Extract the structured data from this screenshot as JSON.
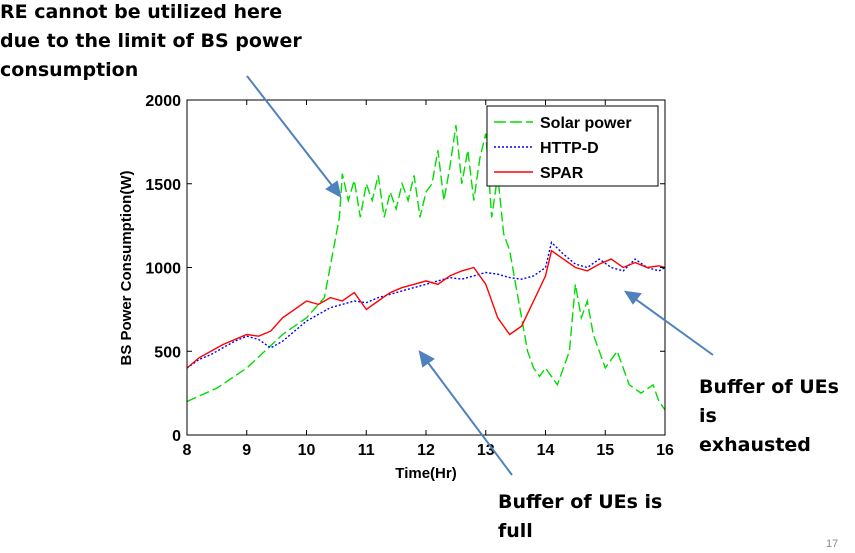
{
  "chart_data": {
    "type": "line",
    "title": "",
    "xlabel": "Time(Hr)",
    "ylabel": "BS Power Consumption(W)",
    "xlim": [
      8,
      16
    ],
    "ylim": [
      0,
      2000
    ],
    "x_ticks": [
      "8",
      "9",
      "10",
      "11",
      "12",
      "13",
      "14",
      "15",
      "16"
    ],
    "y_ticks": [
      "0",
      "500",
      "1000",
      "1500",
      "2000"
    ],
    "grid": false,
    "legend_position": "top-right",
    "series": [
      {
        "name": "Solar power",
        "color": "#00dd00",
        "style": "dashed",
        "x": [
          8.0,
          8.5,
          9.0,
          9.3,
          9.6,
          10.0,
          10.3,
          10.55,
          10.6,
          10.7,
          10.8,
          10.9,
          11.0,
          11.1,
          11.2,
          11.3,
          11.4,
          11.5,
          11.6,
          11.7,
          11.8,
          11.9,
          12.0,
          12.1,
          12.2,
          12.3,
          12.4,
          12.5,
          12.6,
          12.7,
          12.8,
          12.9,
          13.0,
          13.1,
          13.2,
          13.3,
          13.4,
          13.5,
          13.6,
          13.7,
          13.8,
          13.9,
          14.0,
          14.2,
          14.4,
          14.5,
          14.6,
          14.7,
          14.8,
          14.9,
          15.0,
          15.2,
          15.4,
          15.6,
          15.8,
          15.9,
          16.0
        ],
        "y": [
          200,
          280,
          400,
          500,
          600,
          700,
          820,
          1300,
          1560,
          1400,
          1520,
          1300,
          1500,
          1400,
          1550,
          1300,
          1450,
          1350,
          1500,
          1400,
          1550,
          1300,
          1450,
          1500,
          1700,
          1400,
          1600,
          1850,
          1500,
          1700,
          1400,
          1650,
          1800,
          1300,
          1550,
          1200,
          1100,
          900,
          700,
          500,
          400,
          350,
          400,
          300,
          500,
          900,
          700,
          800,
          600,
          500,
          400,
          500,
          300,
          250,
          300,
          200,
          150
        ]
      },
      {
        "name": "HTTP-D",
        "color": "#0000ff",
        "style": "dotted",
        "x": [
          8.0,
          8.2,
          8.4,
          8.6,
          8.8,
          9.0,
          9.2,
          9.4,
          9.6,
          9.8,
          10.0,
          10.2,
          10.4,
          10.6,
          10.8,
          11.0,
          11.2,
          11.4,
          11.6,
          11.8,
          12.0,
          12.2,
          12.4,
          12.6,
          12.8,
          13.0,
          13.2,
          13.4,
          13.6,
          13.8,
          14.0,
          14.1,
          14.3,
          14.5,
          14.7,
          14.9,
          15.1,
          15.3,
          15.5,
          15.7,
          15.9,
          16.0
        ],
        "y": [
          400,
          450,
          480,
          520,
          560,
          590,
          570,
          520,
          560,
          620,
          680,
          720,
          760,
          780,
          800,
          790,
          820,
          840,
          860,
          880,
          900,
          920,
          940,
          930,
          950,
          970,
          960,
          940,
          930,
          950,
          1000,
          1150,
          1080,
          1020,
          1000,
          1050,
          1000,
          980,
          1050,
          1000,
          980,
          1000
        ]
      },
      {
        "name": "SPAR",
        "color": "#ff0000",
        "style": "solid",
        "x": [
          8.0,
          8.2,
          8.4,
          8.6,
          8.8,
          9.0,
          9.2,
          9.4,
          9.6,
          9.8,
          10.0,
          10.2,
          10.4,
          10.6,
          10.8,
          11.0,
          11.2,
          11.4,
          11.6,
          11.8,
          12.0,
          12.2,
          12.4,
          12.6,
          12.8,
          13.0,
          13.2,
          13.4,
          13.6,
          13.8,
          14.0,
          14.1,
          14.3,
          14.5,
          14.7,
          14.9,
          15.1,
          15.3,
          15.5,
          15.7,
          15.9,
          16.0
        ],
        "y": [
          400,
          460,
          500,
          540,
          570,
          600,
          590,
          620,
          700,
          750,
          800,
          780,
          820,
          800,
          850,
          750,
          800,
          850,
          880,
          900,
          920,
          900,
          950,
          980,
          1000,
          900,
          700,
          600,
          650,
          800,
          950,
          1100,
          1050,
          1000,
          980,
          1020,
          1050,
          1000,
          1030,
          1000,
          1010,
          1000
        ]
      }
    ],
    "annotations": {
      "top_left": [
        "RE cannot be utilized here",
        "due to the limit of BS power",
        "consumption"
      ],
      "right": [
        "Buffer of UEs is",
        "exhausted"
      ],
      "bottom": [
        "Buffer of UEs is",
        "full"
      ]
    }
  },
  "slide": {
    "number": "17"
  },
  "colors": {
    "arrow": "#4f81bd",
    "axis": "#000000"
  }
}
